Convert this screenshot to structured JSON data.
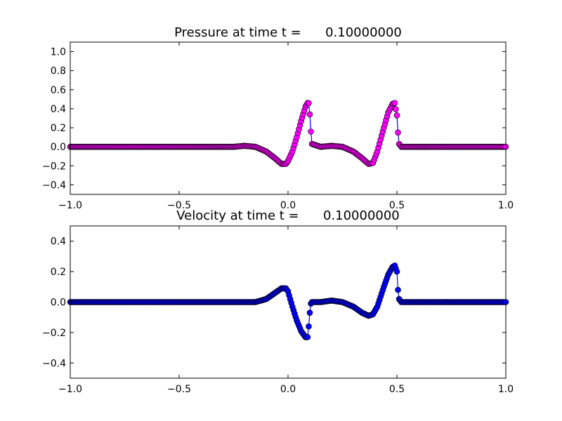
{
  "colors": {
    "line": "#0000ff",
    "pressure_marker": "#ff00ff",
    "velocity_marker": "#0000ff",
    "marker_edge": "#000000"
  },
  "chart_data": [
    {
      "type": "line",
      "title": "Pressure at time t =      0.10000000",
      "xlabel": "",
      "ylabel": "",
      "xlim": [
        -1.0,
        1.0
      ],
      "ylim": [
        -0.5,
        1.1
      ],
      "xticks": [
        "−1.0",
        "−0.5",
        "0.0",
        "0.5",
        "1.0"
      ],
      "xtick_values": [
        -1.0,
        -0.5,
        0.0,
        0.5,
        1.0
      ],
      "yticks": [
        "−0.4",
        "−0.2",
        "0.0",
        "0.2",
        "0.4",
        "0.6",
        "0.8",
        "1.0"
      ],
      "ytick_values": [
        -0.4,
        -0.2,
        0.0,
        0.2,
        0.4,
        0.6,
        0.8,
        1.0
      ],
      "grid": false,
      "series": [
        {
          "x": [
            -1.0,
            -0.25,
            -0.2,
            -0.15,
            -0.1,
            -0.06,
            -0.03,
            -0.01,
            0.0,
            0.02,
            0.04,
            0.06,
            0.08,
            0.09,
            0.095,
            0.1,
            0.105,
            0.11,
            0.15,
            0.2,
            0.25,
            0.3,
            0.34,
            0.37,
            0.39,
            0.41,
            0.44,
            0.46,
            0.48,
            0.49,
            0.5,
            0.505,
            0.51,
            0.52,
            0.6,
            1.0
          ],
          "y": [
            0.0,
            0.0,
            0.01,
            0.0,
            -0.05,
            -0.12,
            -0.18,
            -0.18,
            -0.15,
            -0.05,
            0.1,
            0.27,
            0.42,
            0.46,
            0.46,
            0.34,
            0.16,
            0.03,
            0.0,
            0.01,
            0.0,
            -0.05,
            -0.12,
            -0.18,
            -0.17,
            -0.05,
            0.2,
            0.36,
            0.45,
            0.46,
            0.33,
            0.15,
            0.03,
            0.0,
            0.0,
            0.0
          ]
        }
      ]
    },
    {
      "type": "line",
      "title": "Velocity at time t =      0.10000000",
      "xlabel": "",
      "ylabel": "",
      "xlim": [
        -1.0,
        1.0
      ],
      "ylim": [
        -0.5,
        0.5
      ],
      "xticks": [
        "−1.0",
        "−0.5",
        "0.0",
        "0.5",
        "1.0"
      ],
      "xtick_values": [
        -1.0,
        -0.5,
        0.0,
        0.5,
        1.0
      ],
      "yticks": [
        "−0.4",
        "−0.2",
        "0.0",
        "0.2",
        "0.4"
      ],
      "ytick_values": [
        -0.4,
        -0.2,
        0.0,
        0.2,
        0.4
      ],
      "grid": false,
      "series": [
        {
          "x": [
            -1.0,
            -0.2,
            -0.15,
            -0.1,
            -0.06,
            -0.03,
            -0.01,
            0.0,
            0.02,
            0.04,
            0.06,
            0.08,
            0.09,
            0.095,
            0.1,
            0.105,
            0.11,
            0.15,
            0.2,
            0.25,
            0.3,
            0.34,
            0.37,
            0.39,
            0.41,
            0.44,
            0.46,
            0.48,
            0.49,
            0.5,
            0.505,
            0.51,
            0.52,
            0.6,
            1.0
          ],
          "y": [
            0.0,
            0.0,
            0.0,
            0.02,
            0.06,
            0.09,
            0.09,
            0.07,
            -0.03,
            -0.12,
            -0.19,
            -0.23,
            -0.23,
            -0.16,
            -0.07,
            -0.01,
            0.0,
            0.0,
            0.01,
            0.0,
            -0.03,
            -0.07,
            -0.09,
            -0.08,
            -0.03,
            0.1,
            0.18,
            0.23,
            0.24,
            0.2,
            0.08,
            0.02,
            0.0,
            0.0,
            0.0
          ]
        }
      ]
    }
  ]
}
